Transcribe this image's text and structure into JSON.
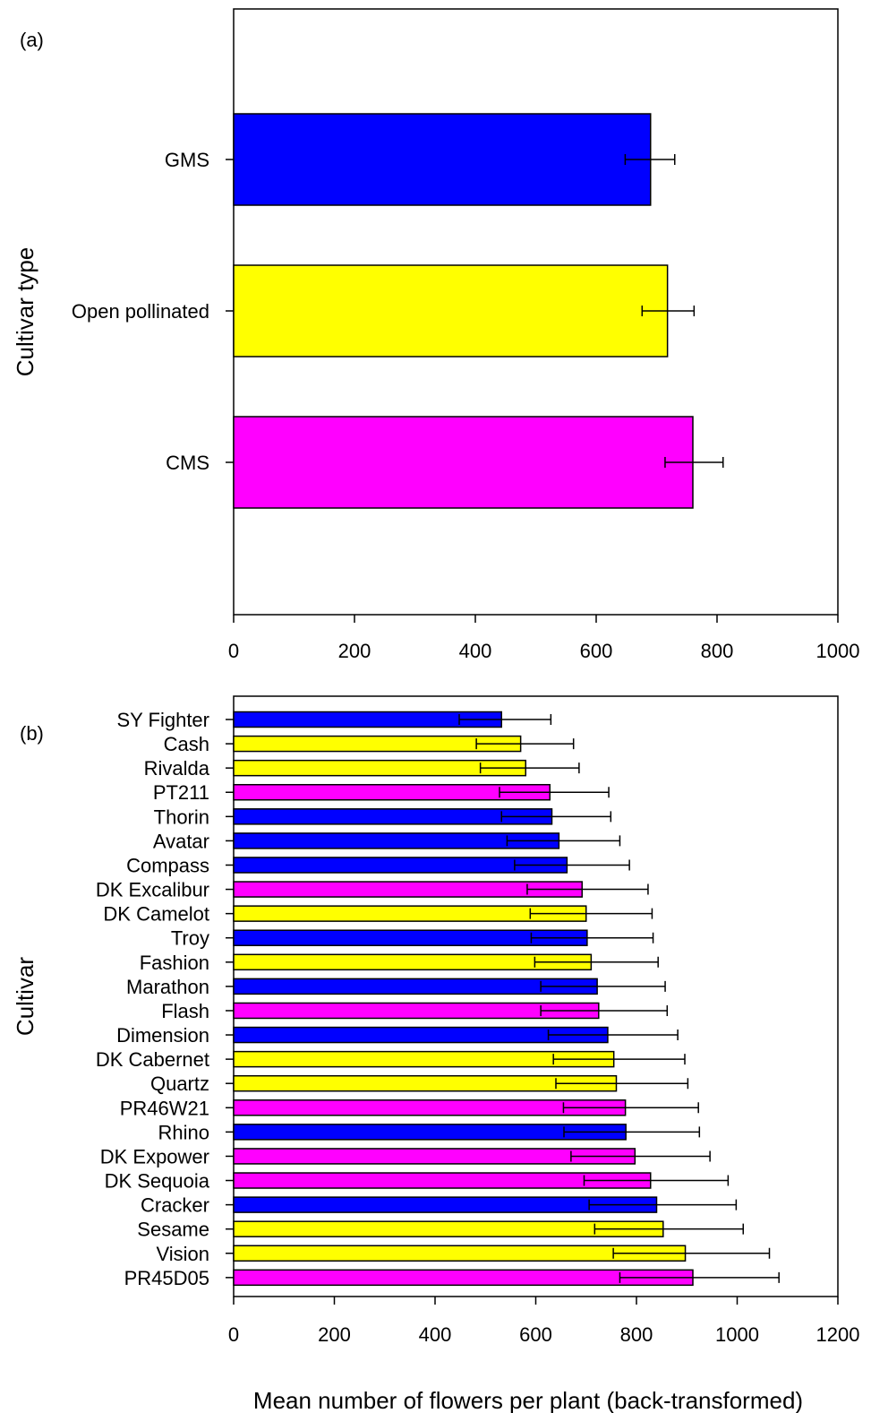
{
  "xlabel": "Mean number of flowers per plant (back-transformed)",
  "colors": {
    "GMS": "#0000ff",
    "Open pollinated": "#ffff00",
    "CMS": "#ff00ff"
  },
  "chart_data": [
    {
      "type": "bar",
      "orientation": "horizontal",
      "panel_label": "(a)",
      "ylabel": "Cultivar type",
      "xlim": [
        0,
        1000
      ],
      "x_ticks": [
        "0",
        "200",
        "400",
        "600",
        "800",
        "1000"
      ],
      "categories": [
        "GMS",
        "Open pollinated",
        "CMS"
      ],
      "values": [
        690,
        718,
        760
      ],
      "error_low": [
        648,
        676,
        714
      ],
      "error_high": [
        730,
        762,
        810
      ],
      "color_keys": [
        "GMS",
        "Open pollinated",
        "CMS"
      ],
      "grid": false
    },
    {
      "type": "bar",
      "orientation": "horizontal",
      "panel_label": "(b)",
      "ylabel": "Cultivar",
      "xlim": [
        0,
        1200
      ],
      "x_ticks": [
        "0",
        "200",
        "400",
        "600",
        "800",
        "1000",
        "1200"
      ],
      "categories": [
        "SY Fighter",
        "Cash",
        "Rivalda",
        "PT211",
        "Thorin",
        "Avatar",
        "Compass",
        "DK Excalibur",
        "DK Camelot",
        "Troy",
        "Fashion",
        "Marathon",
        "Flash",
        "Dimension",
        "DK Cabernet",
        "Quartz",
        "PR46W21",
        "Rhino",
        "DK Expower",
        "DK Sequoia",
        "Cracker",
        "Sesame",
        "Vision",
        "PR45D05"
      ],
      "values": [
        532,
        570,
        580,
        628,
        632,
        646,
        662,
        692,
        700,
        702,
        710,
        722,
        725,
        743,
        755,
        760,
        778,
        779,
        797,
        828,
        840,
        853,
        897,
        912
      ],
      "error_low": [
        448,
        482,
        490,
        528,
        532,
        543,
        558,
        583,
        589,
        591,
        598,
        610,
        610,
        625,
        635,
        640,
        655,
        656,
        670,
        696,
        706,
        717,
        754,
        767
      ],
      "error_high": [
        630,
        675,
        686,
        745,
        749,
        767,
        786,
        823,
        831,
        833,
        843,
        857,
        861,
        882,
        896,
        902,
        923,
        925,
        946,
        982,
        998,
        1012,
        1064,
        1083
      ],
      "color_keys": [
        "GMS",
        "Open pollinated",
        "Open pollinated",
        "CMS",
        "GMS",
        "GMS",
        "GMS",
        "CMS",
        "Open pollinated",
        "GMS",
        "Open pollinated",
        "GMS",
        "CMS",
        "GMS",
        "Open pollinated",
        "Open pollinated",
        "CMS",
        "GMS",
        "CMS",
        "CMS",
        "GMS",
        "Open pollinated",
        "Open pollinated",
        "CMS"
      ],
      "grid": false
    }
  ]
}
